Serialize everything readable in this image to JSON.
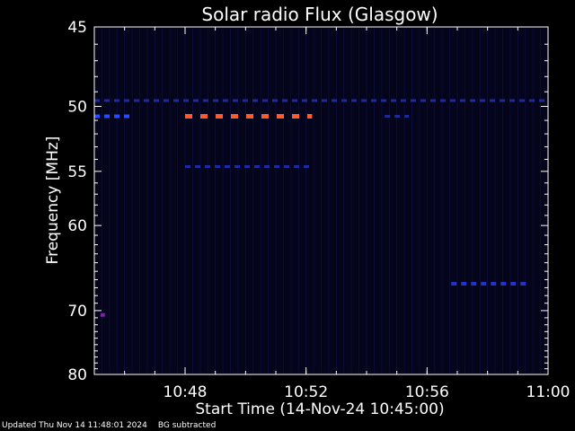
{
  "chart_data": {
    "type": "heatmap",
    "title": "Solar radio Flux (Glasgow)",
    "xlabel": "Start Time (14-Nov-24 10:45:00)",
    "ylabel": "Frequency [MHz]",
    "x_start_minutes": 0,
    "x_end_minutes": 15,
    "x_ticks": [
      {
        "label": "10:48",
        "minutes": 3
      },
      {
        "label": "10:52",
        "minutes": 7
      },
      {
        "label": "10:56",
        "minutes": 11
      },
      {
        "label": "11:00",
        "minutes": 15
      }
    ],
    "ylim": [
      45,
      80
    ],
    "y_ticks": [
      45,
      50,
      55,
      60,
      70,
      80
    ],
    "background_color": "#04041a",
    "features": [
      {
        "name": "continuous band",
        "freq_mhz": 49.6,
        "t_start": 0,
        "t_end": 15,
        "intensity": "low",
        "color": "#1c2a9a"
      },
      {
        "name": "band A early",
        "freq_mhz": 50.7,
        "t_start": 0,
        "t_end": 1.2,
        "intensity": "medium",
        "color": "#2a4bff"
      },
      {
        "name": "band A burst",
        "freq_mhz": 50.7,
        "t_start": 3.0,
        "t_end": 7.2,
        "intensity": "high",
        "color": "#ff5a2a"
      },
      {
        "name": "band A late",
        "freq_mhz": 50.7,
        "t_start": 9.6,
        "t_end": 10.4,
        "intensity": "low",
        "color": "#1c2a9a"
      },
      {
        "name": "band B",
        "freq_mhz": 54.6,
        "t_start": 3.0,
        "t_end": 7.2,
        "intensity": "low",
        "color": "#1c2aa8"
      },
      {
        "name": "band C",
        "freq_mhz": 66.5,
        "t_start": 11.8,
        "t_end": 14.3,
        "intensity": "medium",
        "color": "#2233cc"
      },
      {
        "name": "spot",
        "freq_mhz": 70.6,
        "t_start": 0.2,
        "t_end": 0.35,
        "intensity": "medium",
        "color": "#7a22aa"
      }
    ]
  },
  "footer": {
    "updated": "Updated Thu Nov 14 11:48:01 2024",
    "note": "BG subtracted"
  }
}
